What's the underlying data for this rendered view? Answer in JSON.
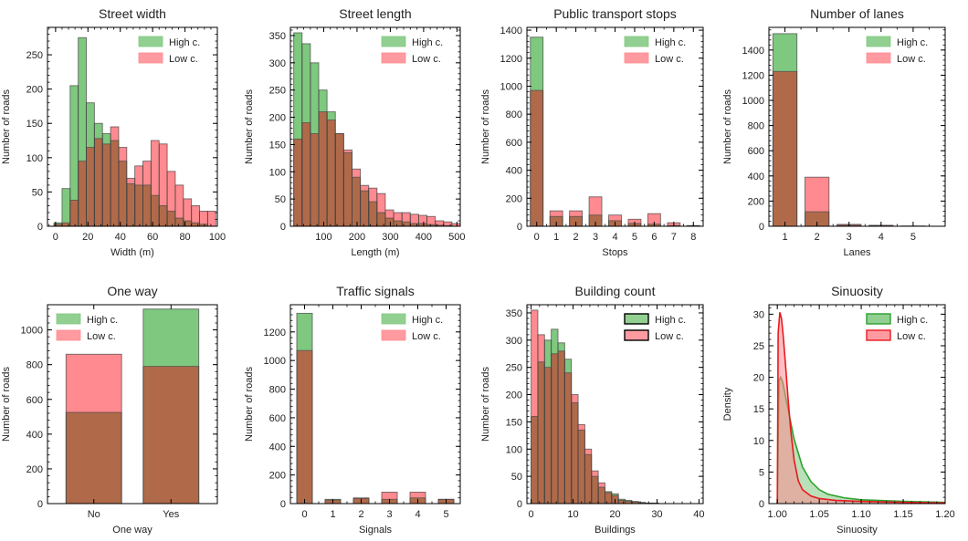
{
  "figure": {
    "legend_high": "High c.",
    "legend_low": "Low c.",
    "colors": {
      "high_fill": "#7fc87f",
      "low_fill": "#ff8a8f",
      "overlap_fill": "#b06a4a",
      "high_line": "#2ca02c",
      "low_line": "#e8191f",
      "edge": "#444444"
    }
  },
  "chart_data": [
    {
      "id": "street-width",
      "type": "bar",
      "subtype": "histogram",
      "title": "Street width",
      "xlabel": "Width (m)",
      "ylabel": "Number of roads",
      "xlim": [
        -5,
        100
      ],
      "ylim": [
        0,
        290
      ],
      "xticks": [
        0,
        20,
        40,
        60,
        80,
        100
      ],
      "yticks": [
        0,
        50,
        100,
        150,
        200,
        250
      ],
      "bin_start": -1,
      "bin_width": 5,
      "series": [
        {
          "name": "High c.",
          "values": [
            5,
            55,
            205,
            275,
            180,
            150,
            135,
            125,
            95,
            62,
            60,
            60,
            45,
            30,
            22,
            12,
            8,
            5,
            3,
            0
          ]
        },
        {
          "name": "Low c.",
          "values": [
            3,
            5,
            38,
            95,
            115,
            128,
            120,
            145,
            115,
            70,
            88,
            95,
            125,
            120,
            80,
            60,
            40,
            30,
            22,
            22
          ]
        }
      ],
      "legend": "top-right"
    },
    {
      "id": "street-length",
      "type": "bar",
      "subtype": "histogram",
      "title": "Street length",
      "xlabel": "Length (m)",
      "ylabel": "Number of roads",
      "xlim": [
        0,
        510
      ],
      "ylim": [
        0,
        365
      ],
      "xticks": [
        100,
        200,
        300,
        400,
        500
      ],
      "yticks": [
        0,
        50,
        100,
        150,
        200,
        250,
        300,
        350
      ],
      "bin_start": 10,
      "bin_width": 25,
      "series": [
        {
          "name": "High c.",
          "values": [
            355,
            335,
            300,
            250,
            210,
            170,
            135,
            90,
            65,
            45,
            25,
            15,
            10,
            8,
            5,
            5,
            3,
            2,
            1,
            0
          ]
        },
        {
          "name": "Low c.",
          "values": [
            160,
            190,
            170,
            210,
            195,
            170,
            140,
            105,
            75,
            70,
            60,
            30,
            25,
            25,
            22,
            20,
            18,
            10,
            8,
            5
          ]
        }
      ],
      "legend": "top-right"
    },
    {
      "id": "public-transport-stops",
      "type": "bar",
      "title": "Public transport stops",
      "xlabel": "Stops",
      "ylabel": "Number of roads",
      "xlim": [
        -0.5,
        8.5
      ],
      "ylim": [
        0,
        1420
      ],
      "xticks": [
        0,
        1,
        2,
        3,
        4,
        5,
        6,
        7,
        8
      ],
      "yticks": [
        0,
        200,
        400,
        600,
        800,
        1000,
        1200,
        1400
      ],
      "categories": [
        0,
        1,
        2,
        3,
        4,
        5,
        6,
        7,
        8
      ],
      "bar_width": 0.65,
      "series": [
        {
          "name": "High c.",
          "values": [
            1350,
            70,
            70,
            80,
            40,
            20,
            15,
            5,
            2
          ]
        },
        {
          "name": "Low c.",
          "values": [
            970,
            110,
            110,
            210,
            80,
            50,
            90,
            25,
            5
          ]
        }
      ],
      "legend": "top-right"
    },
    {
      "id": "number-of-lanes",
      "type": "bar",
      "title": "Number of lanes",
      "xlabel": "Lanes",
      "ylabel": "Number of roads",
      "xlim": [
        0.5,
        6
      ],
      "ylim": [
        0,
        1580
      ],
      "xticks": [
        1,
        2,
        3,
        4,
        5
      ],
      "yticks": [
        0,
        200,
        400,
        600,
        800,
        1000,
        1200,
        1400
      ],
      "categories": [
        1,
        2,
        3,
        4,
        5
      ],
      "bar_width": 0.75,
      "series": [
        {
          "name": "High c.",
          "values": [
            1530,
            115,
            8,
            4,
            1
          ]
        },
        {
          "name": "Low c.",
          "values": [
            1230,
            390,
            15,
            8,
            2
          ]
        }
      ],
      "legend": "top-right"
    },
    {
      "id": "one-way",
      "type": "bar",
      "title": "One way",
      "xlabel": "One way",
      "ylabel": "Number of roads",
      "xlim": [
        -0.6,
        1.6
      ],
      "ylim": [
        0,
        1145
      ],
      "categories": [
        "No",
        "Yes"
      ],
      "yticks": [
        0,
        200,
        400,
        600,
        800,
        1000
      ],
      "bar_width": 0.72,
      "series": [
        {
          "name": "High c.",
          "values": [
            525,
            1120
          ]
        },
        {
          "name": "Low c.",
          "values": [
            860,
            790
          ]
        }
      ],
      "legend": "top-left"
    },
    {
      "id": "traffic-signals",
      "type": "bar",
      "title": "Traffic signals",
      "xlabel": "Signals",
      "ylabel": "Number of roads",
      "xlim": [
        -0.5,
        5.5
      ],
      "ylim": [
        0,
        1390
      ],
      "xticks": [
        0,
        1,
        2,
        3,
        4,
        5
      ],
      "yticks": [
        0,
        200,
        400,
        600,
        800,
        1000,
        1200
      ],
      "categories": [
        0,
        1,
        2,
        3,
        4,
        5
      ],
      "bar_width": 0.55,
      "series": [
        {
          "name": "High c.",
          "values": [
            1330,
            30,
            35,
            30,
            40,
            30
          ]
        },
        {
          "name": "Low c.",
          "values": [
            1070,
            25,
            40,
            80,
            80,
            30
          ]
        }
      ],
      "legend": "top-right"
    },
    {
      "id": "building-count",
      "type": "bar",
      "subtype": "histogram",
      "title": "Building count",
      "xlabel": "Buildings",
      "ylabel": "Number of roads",
      "xlim": [
        -1,
        41
      ],
      "ylim": [
        0,
        365
      ],
      "xticks": [
        0,
        10,
        20,
        30,
        40
      ],
      "yticks": [
        0,
        50,
        100,
        150,
        200,
        250,
        300,
        350
      ],
      "bin_start": 0,
      "bin_width": 1.6,
      "series": [
        {
          "name": "High c.",
          "values": [
            160,
            260,
            300,
            320,
            295,
            265,
            185,
            135,
            90,
            50,
            30,
            22,
            18,
            8,
            6,
            4,
            2,
            1,
            1,
            0
          ]
        },
        {
          "name": "Low c.",
          "values": [
            355,
            310,
            250,
            275,
            280,
            240,
            200,
            145,
            100,
            60,
            38,
            20,
            15,
            6,
            4,
            3,
            2,
            1,
            1,
            0
          ]
        }
      ],
      "legend": "top-right"
    },
    {
      "id": "sinuosity",
      "type": "area",
      "title": "Sinuosity",
      "xlabel": "Sinuosity",
      "ylabel": "Density",
      "xlim": [
        0.99,
        1.2
      ],
      "ylim": [
        0,
        31.5
      ],
      "xticks": [
        1.0,
        1.05,
        1.1,
        1.15,
        1.2
      ],
      "xtick_labels": [
        "1.00",
        "1.05",
        "1.10",
        "1.15",
        "1.20"
      ],
      "yticks": [
        0,
        5,
        10,
        15,
        20,
        25,
        30
      ],
      "series": [
        {
          "name": "High c.",
          "x": [
            1.0,
            1.002,
            1.004,
            1.006,
            1.008,
            1.01,
            1.015,
            1.02,
            1.03,
            1.04,
            1.05,
            1.06,
            1.08,
            1.1,
            1.15,
            1.2
          ],
          "y": [
            0,
            19.5,
            20.0,
            19.4,
            18.2,
            16.8,
            13.5,
            10.2,
            5.8,
            3.5,
            2.2,
            1.5,
            0.9,
            0.6,
            0.35,
            0.2
          ]
        },
        {
          "name": "Low c.",
          "x": [
            1.0,
            1.001,
            1.003,
            1.005,
            1.007,
            1.01,
            1.013,
            1.016,
            1.02,
            1.025,
            1.03,
            1.04,
            1.05,
            1.07,
            1.1,
            1.15,
            1.2
          ],
          "y": [
            0,
            27.0,
            30.3,
            29.3,
            26.6,
            21.6,
            16.3,
            11.6,
            6.9,
            3.6,
            2.2,
            1.2,
            0.8,
            0.5,
            0.35,
            0.2,
            0.1
          ]
        }
      ],
      "legend": "top-right"
    }
  ]
}
